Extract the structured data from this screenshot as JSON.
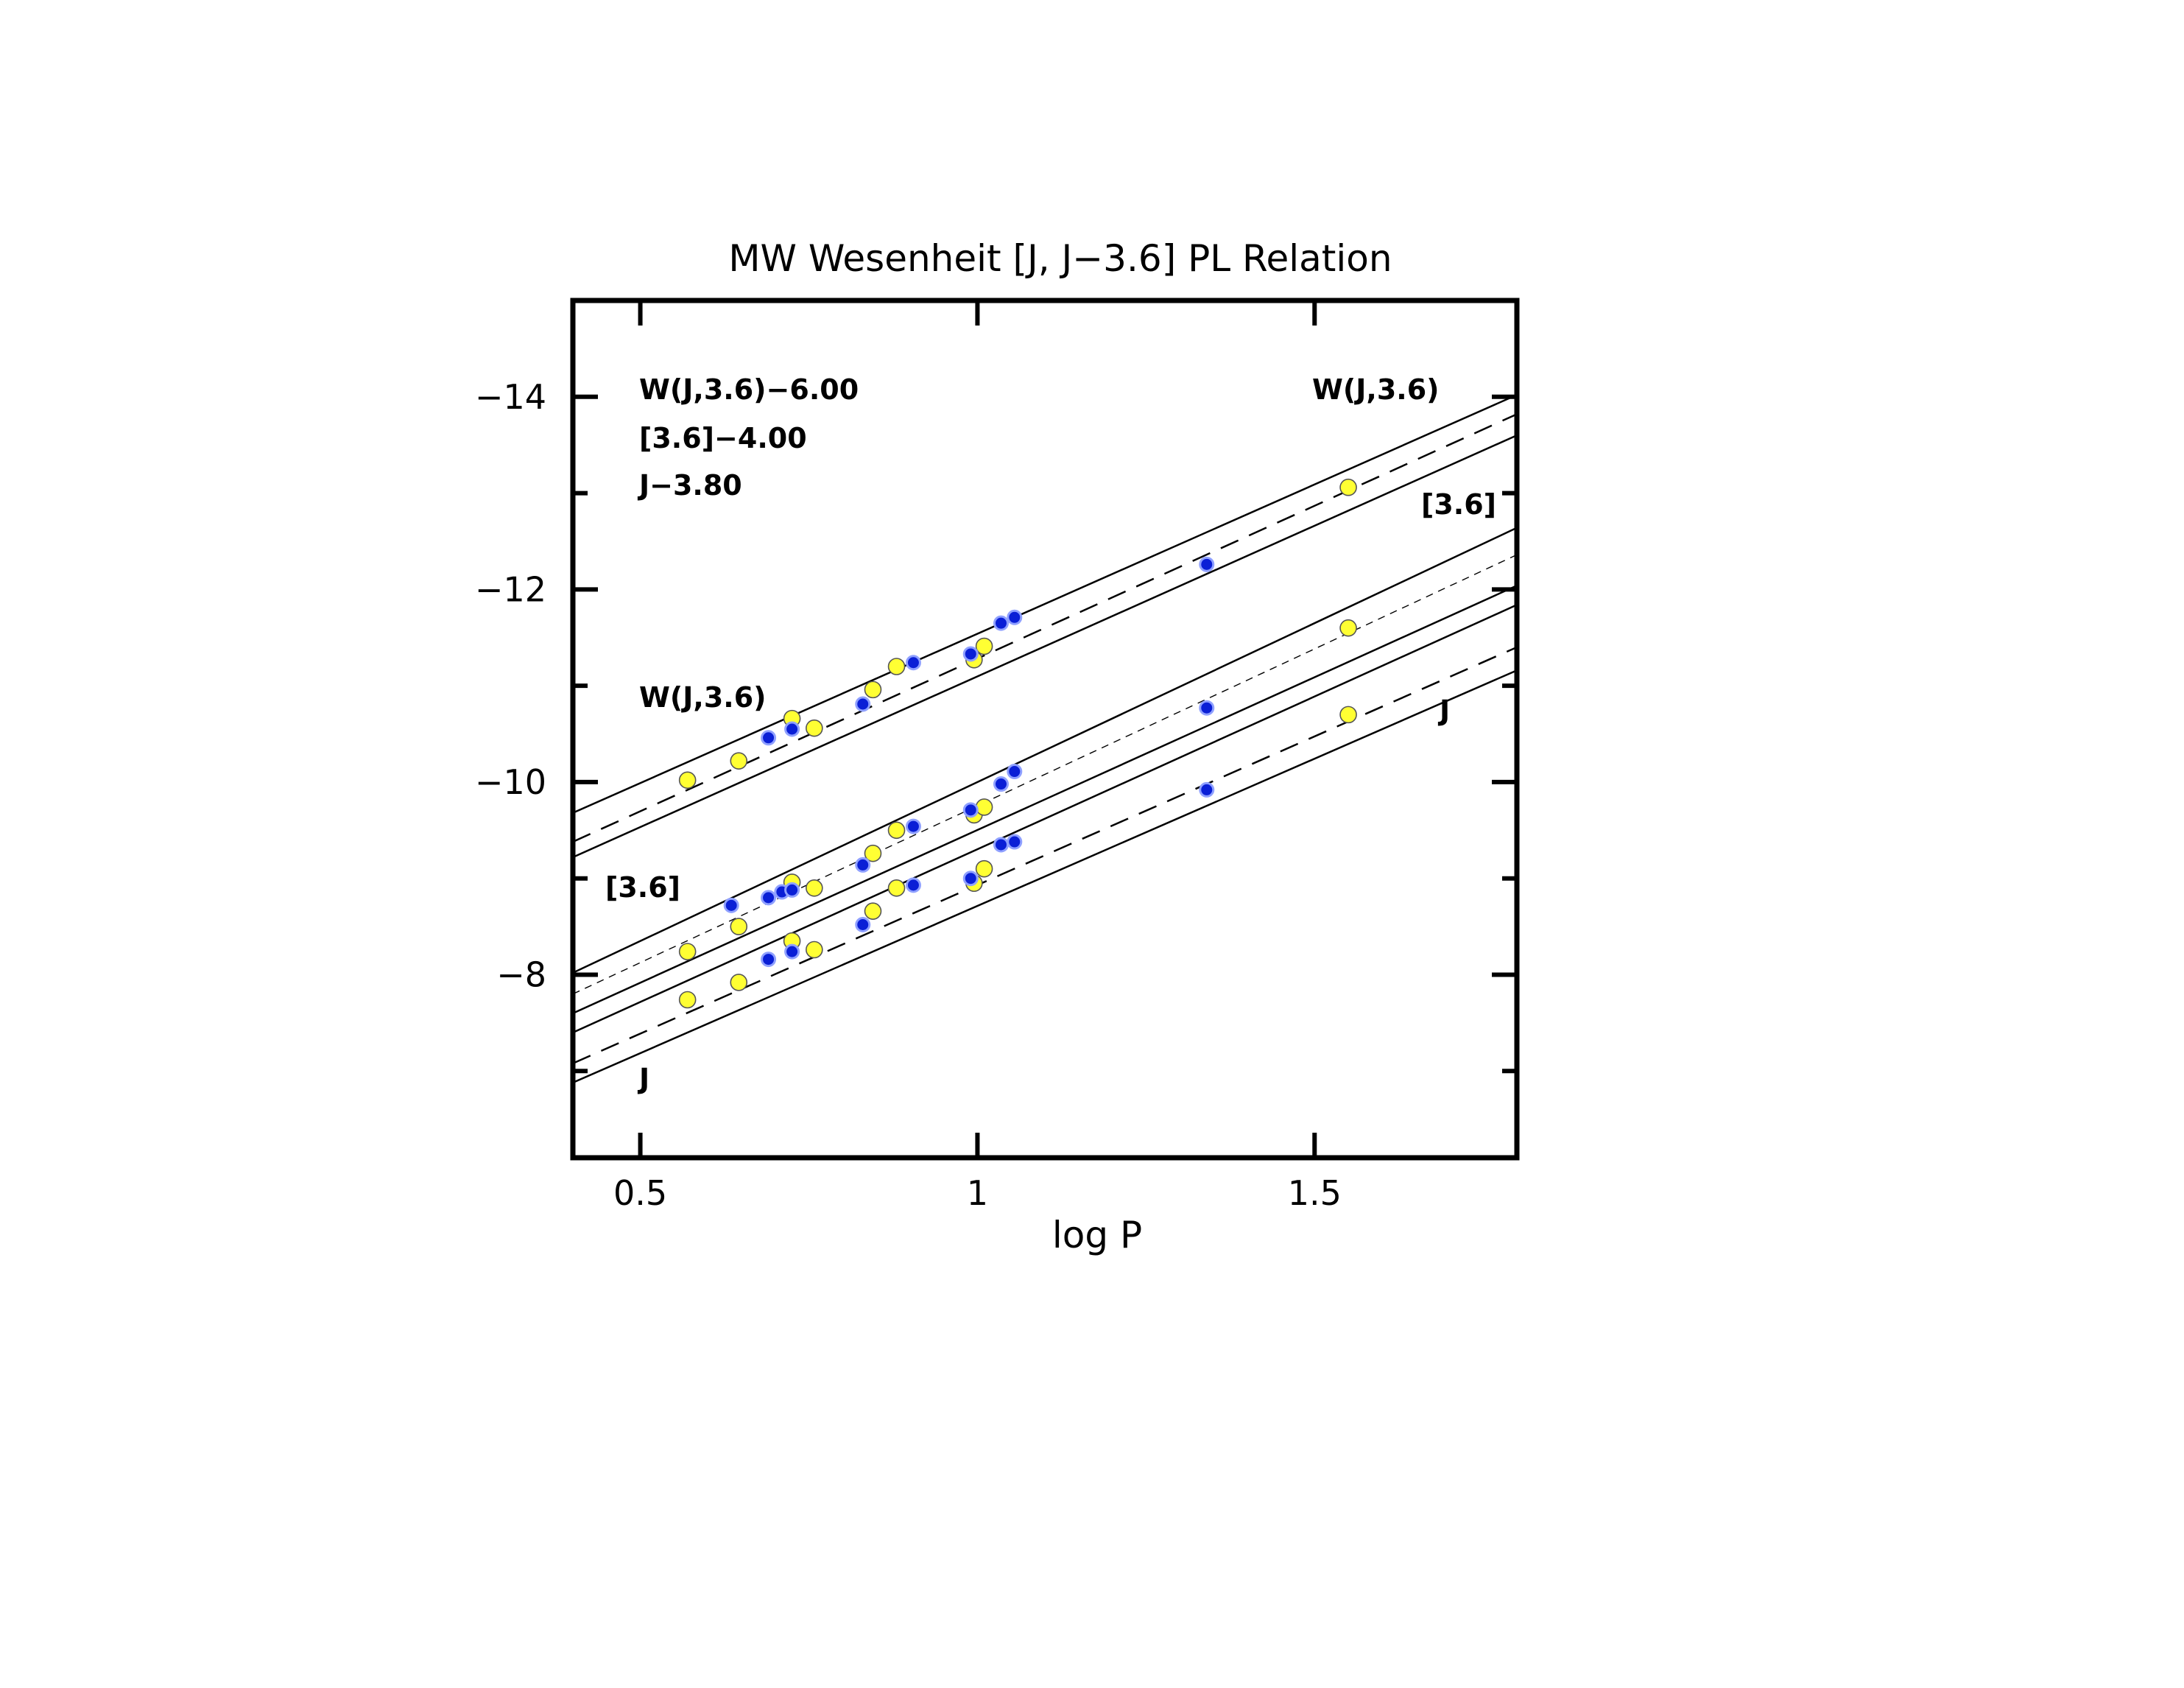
{
  "chart_data": {
    "type": "scatter",
    "title": "MW Wesenheit [J, J−3.6] PL Relation",
    "xlabel": "log P",
    "ylabel": "",
    "xlim": [
      0.4,
      1.8
    ],
    "ylim": [
      -6.1,
      -15.0
    ],
    "y_inverted": true,
    "x_ticks": [
      0.5,
      1.0,
      1.5
    ],
    "x_tick_labels": [
      "0.5",
      "1",
      "1.5"
    ],
    "y_ticks": [
      -14,
      -12,
      -10,
      -8
    ],
    "y_tick_labels": [
      "−14",
      "−12",
      "−10",
      "−8"
    ],
    "annotations": {
      "offsets": [
        "W(J,3.6)−6.00",
        "[3.6]−4.00",
        "J−3.80"
      ],
      "w_left": "W(J,3.6)",
      "w_right": "W(J,3.6)",
      "m36_left": "[3.6]",
      "m36_right": "[3.6]",
      "j_left": "J",
      "j_right": "J"
    },
    "fit_lines": [
      {
        "band": "W(J,3.6)",
        "style": "dashed",
        "points": [
          [
            0.4,
            -9.38
          ],
          [
            1.8,
            -13.82
          ]
        ]
      },
      {
        "band": "W(J,3.6)",
        "style": "solid",
        "points": [
          [
            0.4,
            -9.68
          ],
          [
            1.8,
            -14.02
          ]
        ]
      },
      {
        "band": "W(J,3.6)",
        "style": "solid",
        "points": [
          [
            0.4,
            -9.22
          ],
          [
            1.8,
            -13.6
          ]
        ]
      },
      {
        "band": "[3.6]",
        "style": "dotted",
        "points": [
          [
            0.4,
            -7.8
          ],
          [
            1.8,
            -12.36
          ]
        ]
      },
      {
        "band": "[3.6]",
        "style": "solid",
        "points": [
          [
            0.4,
            -8.02
          ],
          [
            1.8,
            -12.64
          ]
        ]
      },
      {
        "band": "[3.6]",
        "style": "solid",
        "points": [
          [
            0.4,
            -7.6
          ],
          [
            1.8,
            -12.04
          ]
        ]
      },
      {
        "band": "J",
        "style": "dashed",
        "points": [
          [
            0.4,
            -7.08
          ],
          [
            1.8,
            -11.4
          ]
        ]
      },
      {
        "band": "J",
        "style": "solid",
        "points": [
          [
            0.4,
            -7.4
          ],
          [
            1.8,
            -11.84
          ]
        ]
      },
      {
        "band": "J",
        "style": "solid",
        "points": [
          [
            0.4,
            -6.88
          ],
          [
            1.8,
            -11.16
          ]
        ]
      }
    ],
    "series": [
      {
        "color": "#ffff33",
        "points": [
          [
            0.57,
            -10.02
          ],
          [
            0.646,
            -10.22
          ],
          [
            0.725,
            -10.66
          ],
          [
            0.758,
            -10.56
          ],
          [
            0.845,
            -10.96
          ],
          [
            0.88,
            -11.2
          ],
          [
            0.995,
            -11.27
          ],
          [
            1.01,
            -11.41
          ],
          [
            1.55,
            -13.06
          ],
          [
            0.57,
            -8.24
          ],
          [
            0.646,
            -8.5
          ],
          [
            0.725,
            -8.96
          ],
          [
            0.758,
            -8.9
          ],
          [
            0.845,
            -9.26
          ],
          [
            0.88,
            -9.5
          ],
          [
            0.995,
            -9.66
          ],
          [
            1.01,
            -9.74
          ],
          [
            1.55,
            -11.6
          ],
          [
            0.57,
            -7.74
          ],
          [
            0.646,
            -7.92
          ],
          [
            0.725,
            -8.35
          ],
          [
            0.758,
            -8.26
          ],
          [
            0.845,
            -8.66
          ],
          [
            0.88,
            -8.9
          ],
          [
            0.995,
            -8.95
          ],
          [
            1.01,
            -9.1
          ],
          [
            1.55,
            -10.7
          ]
        ]
      },
      {
        "color": "#0a1fd6",
        "points": [
          [
            0.69,
            -10.46
          ],
          [
            0.725,
            -10.55
          ],
          [
            0.83,
            -10.81
          ],
          [
            0.905,
            -11.24
          ],
          [
            0.99,
            -11.33
          ],
          [
            1.035,
            -11.65
          ],
          [
            1.055,
            -11.71
          ],
          [
            1.34,
            -12.26
          ],
          [
            0.635,
            -8.72
          ],
          [
            0.69,
            -8.8
          ],
          [
            0.71,
            -8.86
          ],
          [
            0.725,
            -8.88
          ],
          [
            0.83,
            -9.14
          ],
          [
            0.905,
            -9.54
          ],
          [
            0.99,
            -9.71
          ],
          [
            1.035,
            -9.98
          ],
          [
            1.055,
            -10.11
          ],
          [
            1.34,
            -10.77
          ],
          [
            0.69,
            -8.16
          ],
          [
            0.725,
            -8.24
          ],
          [
            0.83,
            -8.52
          ],
          [
            0.905,
            -8.93
          ],
          [
            0.99,
            -9.0
          ],
          [
            1.035,
            -9.35
          ],
          [
            1.055,
            -9.38
          ],
          [
            1.34,
            -9.92
          ]
        ]
      }
    ]
  }
}
